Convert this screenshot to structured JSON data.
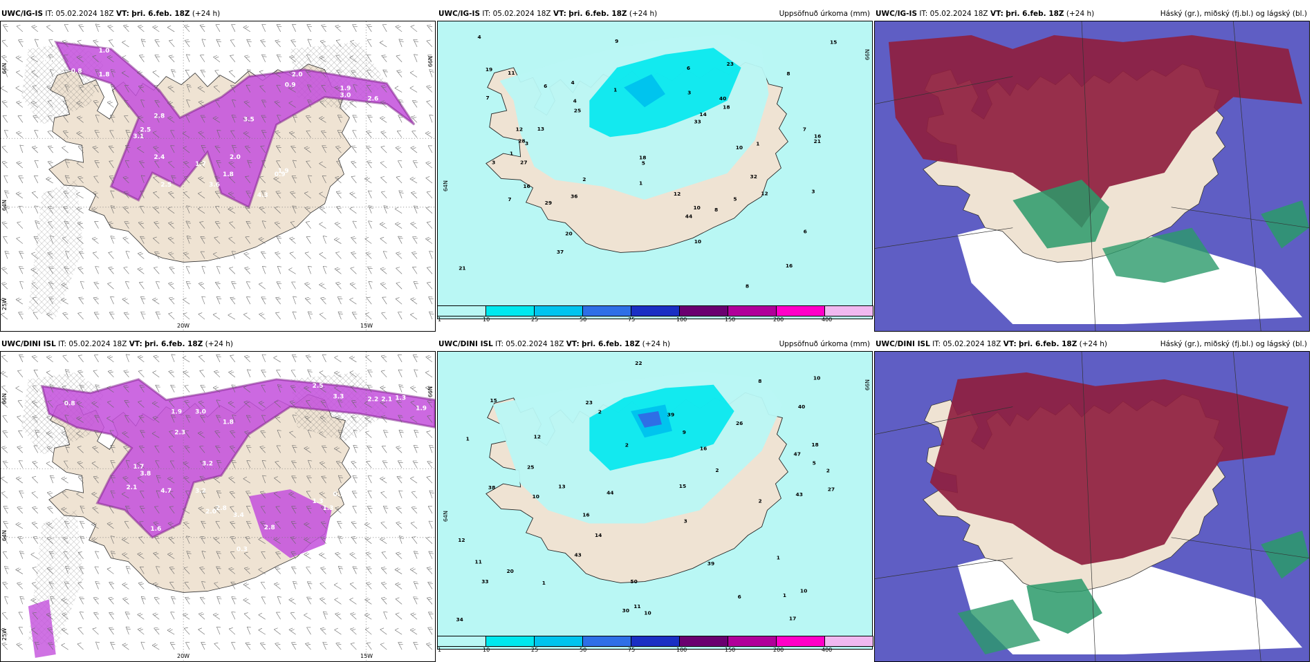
{
  "rows": [
    {
      "model": "UWC/IG-IS",
      "it_label": "IT:",
      "it_value": "05.02.2024 18Z",
      "vt_label": "VT:",
      "vt_value": "þri. 6.feb. 18Z",
      "lead": "(+24 h)"
    },
    {
      "model": "UWC/DINI ISL",
      "it_label": "IT:",
      "it_value": "05.02.2024 18Z",
      "vt_label": "VT:",
      "vt_value": "þri. 6.feb. 18Z",
      "lead": "(+24 h)"
    }
  ],
  "panel_titles": {
    "precip": "Uppsöfnuð úrkoma (mm)",
    "clouds": "Háský (gr.), miðský (fj.bl.) og lágský (bl.)"
  },
  "axis_labels": {
    "lon_20": "20W",
    "lon_15": "15W",
    "lon_25": "25W",
    "lat_66": "66N",
    "lat_64": "64N"
  },
  "colorbar": {
    "ticks": [
      "1",
      "10",
      "25",
      "50",
      "75",
      "100",
      "150",
      "200",
      "400"
    ],
    "colors": [
      "#b9f7f4",
      "#00e8ee",
      "#00c4ee",
      "#2e6fe6",
      "#1a2fc4",
      "#6a0070",
      "#b0009a",
      "#ff00c8",
      "#f0b8f0"
    ]
  },
  "colors": {
    "land": "#efe3d3",
    "sea": "#ffffff",
    "precip_light": "#b9f7f4",
    "purple_band": "#c34fdc",
    "purple_core": "#7a1a86",
    "high_cloud": "#5f5ec4",
    "mid_cloud": "#8f1f3f",
    "low_cloud": "#2a9a6a"
  },
  "precip_labels_top": [
    "7",
    "9",
    "8",
    "12",
    "11",
    "18",
    "13",
    "8",
    "7",
    "1",
    "7",
    "6",
    "5",
    "6",
    "18",
    "32",
    "20",
    "28",
    "44",
    "36",
    "33",
    "25",
    "15",
    "16",
    "29",
    "14",
    "27",
    "23",
    "10",
    "16",
    "4",
    "37",
    "12",
    "10",
    "6",
    "3",
    "10",
    "16",
    "12",
    "5",
    "1",
    "2",
    "3",
    "19",
    "21",
    "8",
    "21",
    "4",
    "4",
    "3",
    "1",
    "1",
    "3",
    "40"
  ],
  "precip_labels_bottom": [
    "10",
    "12",
    "38",
    "8",
    "1",
    "43",
    "11",
    "10",
    "2",
    "15",
    "10",
    "2",
    "22",
    "27",
    "39",
    "50",
    "39",
    "43",
    "47",
    "40",
    "44",
    "33",
    "34",
    "20",
    "14",
    "16",
    "17",
    "15",
    "12",
    "5",
    "3",
    "2",
    "16",
    "25",
    "18",
    "23",
    "1",
    "2",
    "2",
    "1",
    "1",
    "11",
    "10",
    "30",
    "26",
    "13",
    "9",
    "6"
  ],
  "purple_labels_top": [
    "0.3",
    "0.6",
    "0.5",
    "0.3",
    "0.6",
    "0.8",
    "1.8",
    "1.0",
    "2.0",
    "0.9",
    "3.0",
    "2.6",
    "1.9",
    "2.5",
    "2.8",
    "3.1",
    "2.4",
    "1.7",
    "3.6",
    "1.8",
    "2.5",
    "1.9",
    "4.3",
    "2.0",
    "3.5",
    "0.9"
  ],
  "purple_labels_bottom": [
    "0.3",
    "0.8",
    "1.9",
    "1.8",
    "2.3",
    "3.0",
    "2.5",
    "3.3",
    "2.2",
    "2.1",
    "1.3",
    "1.9",
    "1.7",
    "3.8",
    "2.1",
    "4.7",
    "3.2",
    "2.8",
    "3.4",
    "1.6",
    "3.2",
    "0.3",
    "2.8",
    "2.0",
    "1.3",
    "1.3",
    "0.7"
  ]
}
